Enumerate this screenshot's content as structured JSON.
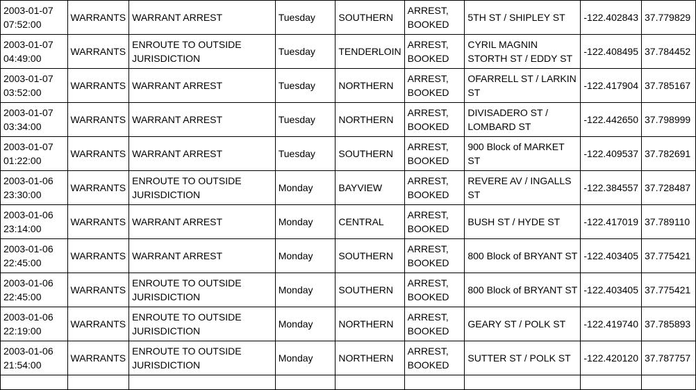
{
  "rows": [
    [
      "2003-01-07 07:52:00",
      "WARRANTS",
      "WARRANT ARREST",
      "Tuesday",
      "SOUTHERN",
      "ARREST, BOOKED",
      "5TH ST / SHIPLEY ST",
      "-122.402843",
      "37.779829"
    ],
    [
      "2003-01-07 04:49:00",
      "WARRANTS",
      "ENROUTE TO OUTSIDE JURISDICTION",
      "Tuesday",
      "TENDERLOIN",
      "ARREST, BOOKED",
      "CYRIL MAGNIN STORTH ST / EDDY ST",
      "-122.408495",
      "37.784452"
    ],
    [
      "2003-01-07 03:52:00",
      "WARRANTS",
      "WARRANT ARREST",
      "Tuesday",
      "NORTHERN",
      "ARREST, BOOKED",
      "OFARRELL ST / LARKIN ST",
      "-122.417904",
      "37.785167"
    ],
    [
      "2003-01-07 03:34:00",
      "WARRANTS",
      "WARRANT ARREST",
      "Tuesday",
      "NORTHERN",
      "ARREST, BOOKED",
      "DIVISADERO ST / LOMBARD ST",
      "-122.442650",
      "37.798999"
    ],
    [
      "2003-01-07 01:22:00",
      "WARRANTS",
      "WARRANT ARREST",
      "Tuesday",
      "SOUTHERN",
      "ARREST, BOOKED",
      "900 Block of MARKET ST",
      "-122.409537",
      "37.782691"
    ],
    [
      "2003-01-06 23:30:00",
      "WARRANTS",
      "ENROUTE TO OUTSIDE JURISDICTION",
      "Monday",
      "BAYVIEW",
      "ARREST, BOOKED",
      "REVERE AV / INGALLS ST",
      "-122.384557",
      "37.728487"
    ],
    [
      "2003-01-06 23:14:00",
      "WARRANTS",
      "WARRANT ARREST",
      "Monday",
      "CENTRAL",
      "ARREST, BOOKED",
      "BUSH ST / HYDE ST",
      "-122.417019",
      "37.789110"
    ],
    [
      "2003-01-06 22:45:00",
      "WARRANTS",
      "WARRANT ARREST",
      "Monday",
      "SOUTHERN",
      "ARREST, BOOKED",
      "800 Block of BRYANT ST",
      "-122.403405",
      "37.775421"
    ],
    [
      "2003-01-06 22:45:00",
      "WARRANTS",
      "ENROUTE TO OUTSIDE JURISDICTION",
      "Monday",
      "SOUTHERN",
      "ARREST, BOOKED",
      "800 Block of BRYANT ST",
      "-122.403405",
      "37.775421"
    ],
    [
      "2003-01-06 22:19:00",
      "WARRANTS",
      "ENROUTE TO OUTSIDE JURISDICTION",
      "Monday",
      "NORTHERN",
      "ARREST, BOOKED",
      "GEARY ST / POLK ST",
      "-122.419740",
      "37.785893"
    ],
    [
      "2003-01-06 21:54:00",
      "WARRANTS",
      "ENROUTE TO OUTSIDE JURISDICTION",
      "Monday",
      "NORTHERN",
      "ARREST, BOOKED",
      "SUTTER ST / POLK ST",
      "-122.420120",
      "37.787757"
    ]
  ]
}
